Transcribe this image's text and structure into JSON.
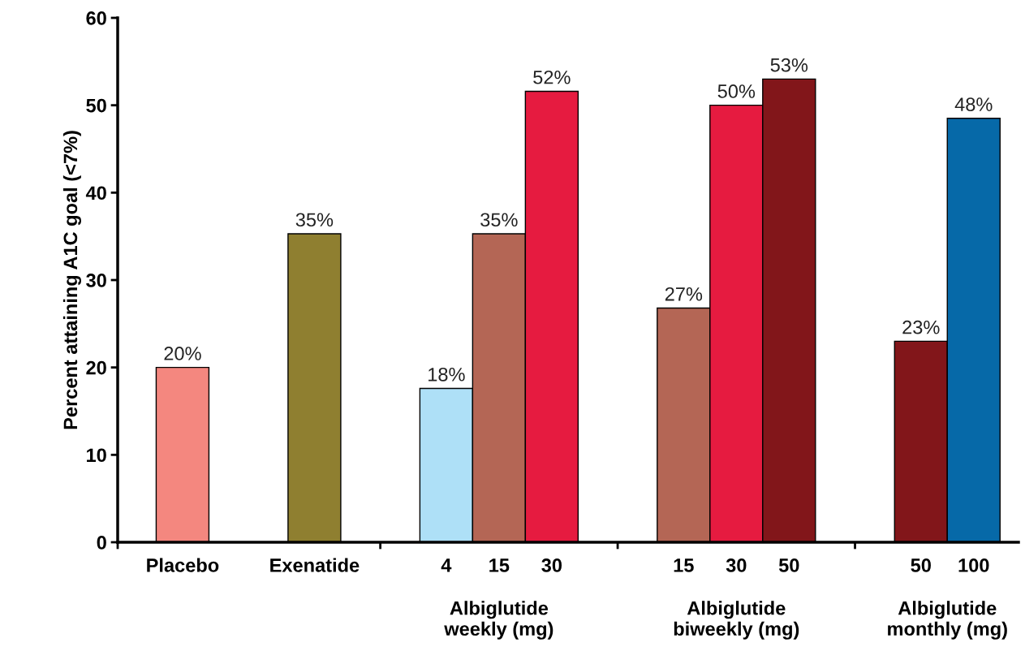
{
  "chart_data": {
    "type": "bar",
    "ylabel": "Percent attaining A1C goal (<7%)",
    "categories": [
      "Placebo",
      "Exenatide",
      "4",
      "15",
      "30",
      "15",
      "30",
      "50",
      "50",
      "100"
    ],
    "values": [
      20,
      35.3,
      17.6,
      35.3,
      51.6,
      26.8,
      50,
      53,
      23,
      48.5
    ],
    "value_labels": [
      "20%",
      "35%",
      "18%",
      "35%",
      "52%",
      "27%",
      "50%",
      "53%",
      "23%",
      "48%"
    ],
    "colors": [
      "#f4877f",
      "#8f7f30",
      "#aee0f7",
      "#b46655",
      "#e61b40",
      "#b46655",
      "#e61b40",
      "#82161a",
      "#82161a",
      "#0669a8"
    ],
    "ylim": [
      0,
      60
    ],
    "yticks": [
      0,
      10,
      20,
      30,
      40,
      50,
      60
    ],
    "grid": false,
    "legend": false,
    "annotations": [
      "Albiglutide\nweekly (mg)",
      "Albiglutide\nbiweekly (mg)",
      "Albiglutide\nmonthly (mg)"
    ]
  }
}
